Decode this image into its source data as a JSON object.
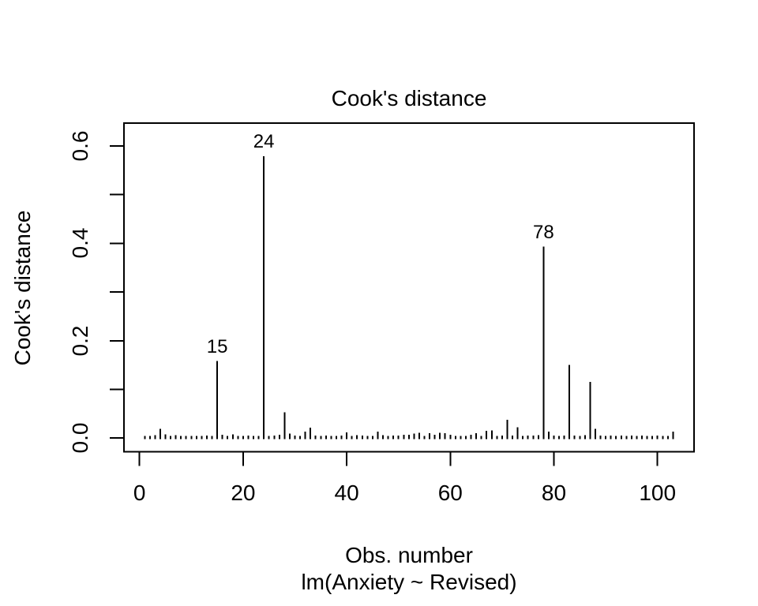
{
  "figure": {
    "background_color": "#ffffff",
    "foreground_color": "#000000"
  },
  "chart_data": {
    "type": "bar",
    "subtype": "vertical-spike-plot (R base graphics, type='h')",
    "title": "Cook's distance",
    "xlabel": "Obs. number",
    "sublabel": "lm(Anxiety ~ Revised)",
    "ylabel": "Cook's distance",
    "grid": "off",
    "legend": "none",
    "xlim": [
      -3.1,
      107.1
    ],
    "ylim": [
      -0.024,
      0.634
    ],
    "xticks": [
      0,
      20,
      40,
      60,
      80,
      100
    ],
    "xtick_labels": [
      "0",
      "20",
      "40",
      "60",
      "80",
      "100"
    ],
    "yticks_all": [
      0,
      0.1,
      0.2,
      0.3,
      0.4,
      0.5,
      0.6
    ],
    "yticks_labeled": [
      0,
      0.2,
      0.4,
      0.6
    ],
    "ytick_labels": [
      "0.0",
      "0.2",
      "0.4",
      "0.6"
    ],
    "x": [
      1,
      2,
      3,
      4,
      5,
      6,
      7,
      8,
      9,
      10,
      11,
      12,
      13,
      14,
      15,
      16,
      17,
      18,
      19,
      20,
      21,
      22,
      23,
      24,
      25,
      26,
      27,
      28,
      29,
      30,
      31,
      32,
      33,
      34,
      35,
      36,
      37,
      38,
      39,
      40,
      41,
      42,
      43,
      44,
      45,
      46,
      47,
      48,
      49,
      50,
      51,
      52,
      53,
      54,
      55,
      56,
      57,
      58,
      59,
      60,
      61,
      62,
      63,
      64,
      65,
      66,
      67,
      68,
      69,
      70,
      71,
      72,
      73,
      74,
      75,
      76,
      77,
      78,
      79,
      80,
      81,
      82,
      83,
      84,
      85,
      86,
      87,
      88,
      89,
      90,
      91,
      92,
      93,
      94,
      95,
      96,
      97,
      98,
      99,
      100,
      101,
      102,
      103
    ],
    "values": [
      0.004,
      0.003,
      0.006,
      0.019,
      0.008,
      0.004,
      0.006,
      0.003,
      0.003,
      0.004,
      0.003,
      0.003,
      0.005,
      0.003,
      0.158,
      0.007,
      0.004,
      0.008,
      0.004,
      0.003,
      0.005,
      0.003,
      0.004,
      0.579,
      0.004,
      0.005,
      0.007,
      0.053,
      0.009,
      0.005,
      0.004,
      0.013,
      0.021,
      0.005,
      0.004,
      0.005,
      0.004,
      0.004,
      0.005,
      0.012,
      0.004,
      0.006,
      0.005,
      0.004,
      0.004,
      0.013,
      0.006,
      0.004,
      0.005,
      0.005,
      0.007,
      0.007,
      0.009,
      0.011,
      0.004,
      0.01,
      0.007,
      0.011,
      0.01,
      0.007,
      0.004,
      0.004,
      0.004,
      0.007,
      0.01,
      0.004,
      0.015,
      0.016,
      0.004,
      0.005,
      0.038,
      0.005,
      0.022,
      0.004,
      0.005,
      0.005,
      0.006,
      0.393,
      0.013,
      0.005,
      0.004,
      0.005,
      0.15,
      0.005,
      0.004,
      0.006,
      0.115,
      0.019,
      0.005,
      0.004,
      0.005,
      0.004,
      0.005,
      0.004,
      0.005,
      0.004,
      0.005,
      0.004,
      0.004,
      0.005,
      0.004,
      0.004,
      0.013
    ],
    "annotated_points": [
      {
        "label": "15",
        "obs": 15,
        "value": 0.158
      },
      {
        "label": "24",
        "obs": 24,
        "value": 0.579
      },
      {
        "label": "78",
        "obs": 78,
        "value": 0.393
      }
    ]
  }
}
